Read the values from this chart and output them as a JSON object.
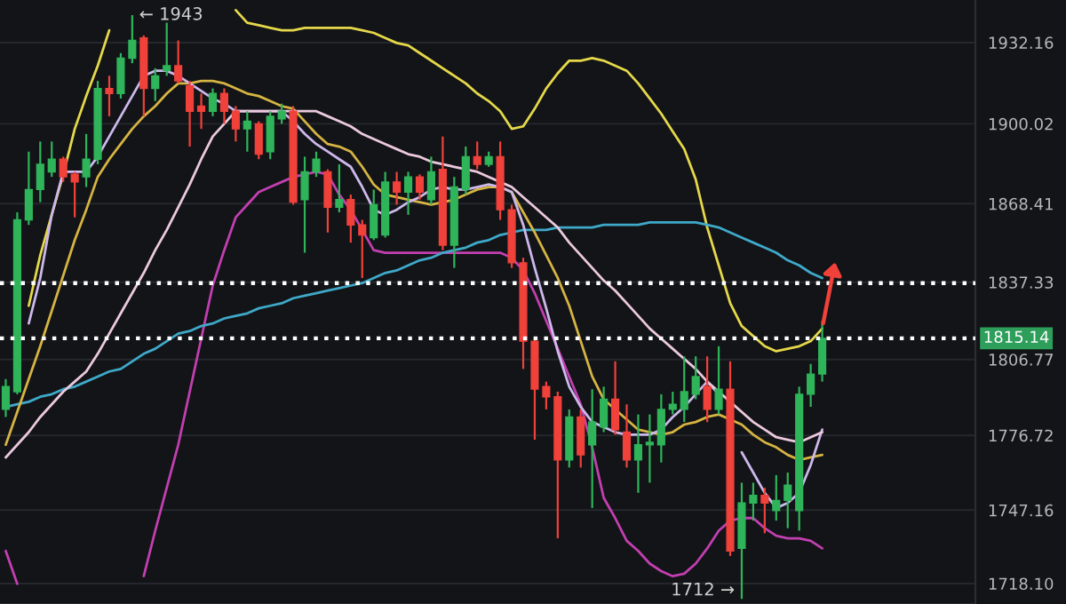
{
  "chart_data": {
    "type": "candlestick",
    "categories": [
      null,
      null,
      null,
      null,
      null,
      null,
      null,
      null,
      null,
      null,
      null,
      null,
      null,
      null,
      null,
      null,
      null,
      null,
      null,
      null,
      null,
      null,
      null,
      null,
      null,
      null,
      null,
      null,
      null,
      null,
      null,
      null,
      null,
      null,
      null,
      null,
      null,
      null,
      null,
      null,
      null,
      null,
      null,
      null,
      null,
      null,
      null,
      null,
      null,
      null,
      null,
      null,
      null,
      null,
      null,
      null,
      null,
      null,
      null,
      null,
      null,
      null,
      null,
      null,
      null,
      null,
      null,
      null,
      null,
      null,
      null,
      null
    ],
    "ohlc": [
      [
        1787,
        1799,
        1784,
        1796
      ],
      [
        1794,
        1865,
        1793,
        1862
      ],
      [
        1862,
        1889,
        1860,
        1874
      ],
      [
        1874,
        1893,
        1869,
        1884
      ],
      [
        1881,
        1893,
        1879,
        1886
      ],
      [
        1886,
        1887,
        1877,
        1879
      ],
      [
        1880,
        1881,
        1863,
        1877
      ],
      [
        1879,
        1896,
        1875,
        1886
      ],
      [
        1886,
        1917,
        1884,
        1914
      ],
      [
        1914,
        1919,
        1903,
        1912
      ],
      [
        1912,
        1928,
        1910,
        1926
      ],
      [
        1926,
        1943,
        1924,
        1933
      ],
      [
        1934,
        1935,
        1903,
        1914
      ],
      [
        1914,
        1922,
        1909,
        1919
      ],
      [
        1921,
        1940,
        1919,
        1923
      ],
      [
        1923,
        1933,
        1916,
        1917
      ],
      [
        1915,
        1917,
        1891,
        1905
      ],
      [
        1907,
        1912,
        1898,
        1905
      ],
      [
        1905,
        1914,
        1903,
        1912
      ],
      [
        1912,
        1914,
        1900,
        1905
      ],
      [
        1905,
        1907,
        1893,
        1898
      ],
      [
        1898,
        1905,
        1889,
        1901
      ],
      [
        1900,
        1901,
        1886,
        1888
      ],
      [
        1889,
        1905,
        1886,
        1903
      ],
      [
        1902,
        1908,
        1900,
        1905
      ],
      [
        1905,
        1907,
        1868,
        1869
      ],
      [
        1870,
        1887,
        1849,
        1881
      ],
      [
        1881,
        1889,
        1879,
        1886
      ],
      [
        1881,
        1882,
        1857,
        1867
      ],
      [
        1867,
        1884,
        1865,
        1870
      ],
      [
        1870,
        1872,
        1853,
        1860
      ],
      [
        1860,
        1862,
        1839,
        1856
      ],
      [
        1855,
        1874,
        1854,
        1868
      ],
      [
        1856,
        1881,
        1855,
        1877
      ],
      [
        1877,
        1881,
        1868,
        1873
      ],
      [
        1873,
        1881,
        1864,
        1879
      ],
      [
        1879,
        1880,
        1870,
        1873
      ],
      [
        1870,
        1887,
        1868,
        1881
      ],
      [
        1882,
        1895,
        1850,
        1852
      ],
      [
        1852,
        1879,
        1843,
        1875
      ],
      [
        1874,
        1891,
        1872,
        1887
      ],
      [
        1887,
        1893,
        1882,
        1884
      ],
      [
        1884,
        1889,
        1883,
        1887
      ],
      [
        1887,
        1893,
        1862,
        1866
      ],
      [
        1866,
        1868,
        1843,
        1845
      ],
      [
        1845,
        1847,
        1803,
        1814
      ],
      [
        1814,
        1815,
        1775,
        1795
      ],
      [
        1796,
        1798,
        1787,
        1792
      ],
      [
        1792,
        1794,
        1736,
        1767
      ],
      [
        1767,
        1787,
        1764,
        1784
      ],
      [
        1784,
        1787,
        1764,
        1769
      ],
      [
        1773,
        1795,
        1748,
        1782
      ],
      [
        1780,
        1796,
        1778,
        1791
      ],
      [
        1791,
        1806,
        1777,
        1779
      ],
      [
        1778,
        1789,
        1764,
        1767
      ],
      [
        1767,
        1785,
        1754,
        1773
      ],
      [
        1773,
        1785,
        1758,
        1774
      ],
      [
        1773,
        1793,
        1766,
        1787
      ],
      [
        1787,
        1794,
        1785,
        1789
      ],
      [
        1787,
        1808,
        1782,
        1794
      ],
      [
        1793,
        1808,
        1791,
        1800
      ],
      [
        1796,
        1808,
        1782,
        1787
      ],
      [
        1787,
        1812,
        1785,
        1795
      ],
      [
        1795,
        1806,
        1729,
        1731
      ],
      [
        1732,
        1758,
        1712,
        1750
      ],
      [
        1750,
        1758,
        1743,
        1753
      ],
      [
        1753,
        1756,
        1738,
        1750
      ],
      [
        1747,
        1761,
        1743,
        1751
      ],
      [
        1751,
        1762,
        1740,
        1757
      ],
      [
        1747,
        1796,
        1739,
        1793
      ],
      [
        1793,
        1805,
        1788,
        1801
      ],
      [
        1801,
        1822,
        1798,
        1815.14
      ]
    ],
    "colors": [
      "#2fb45a",
      "#2fb45a",
      "#2fb45a",
      "#2fb45a",
      "#2fb45a",
      "#f0413a",
      "#f0413a",
      "#2fb45a",
      "#2fb45a",
      "#f0413a",
      "#2fb45a",
      "#2fb45a",
      "#f0413a",
      "#2fb45a",
      "#2fb45a",
      "#f0413a",
      "#f0413a",
      "#f0413a",
      "#2fb45a",
      "#f0413a",
      "#f0413a",
      "#2fb45a",
      "#f0413a",
      "#2fb45a",
      "#2fb45a",
      "#f0413a",
      "#2fb45a",
      "#2fb45a",
      "#f0413a",
      "#2fb45a",
      "#f0413a",
      "#f0413a",
      "#2fb45a",
      "#2fb45a",
      "#f0413a",
      "#2fb45a",
      "#f0413a",
      "#2fb45a",
      "#f0413a",
      "#2fb45a",
      "#2fb45a",
      "#f0413a",
      "#2fb45a",
      "#f0413a",
      "#f0413a",
      "#f0413a",
      "#f0413a",
      "#f0413a",
      "#f0413a",
      "#2fb45a",
      "#f0413a",
      "#2fb45a",
      "#2fb45a",
      "#f0413a",
      "#f0413a",
      "#2fb45a",
      "#2fb45a",
      "#2fb45a",
      "#2fb45a",
      "#2fb45a",
      "#2fb45a",
      "#f0413a",
      "#2fb45a",
      "#f0413a",
      "#2fb45a",
      "#2fb45a",
      "#f0413a",
      "#2fb45a",
      "#2fb45a",
      "#2fb45a",
      "#2fb45a",
      "#2fb45a"
    ],
    "series": [
      {
        "type": "line",
        "color": "#e6d84a",
        "values": [
          null,
          null,
          1828,
          1848,
          1864,
          1880,
          1898,
          1911,
          1923,
          1937,
          null,
          null,
          null,
          null,
          null,
          null,
          null,
          null,
          null,
          null,
          1945,
          1940,
          1939,
          1938,
          1937,
          1937,
          1938,
          1938,
          1938,
          1938,
          1938,
          1937,
          1936,
          1934,
          1932,
          1931,
          1928,
          1925,
          1922,
          1919,
          1916,
          1912,
          1909,
          1905,
          1898,
          1899,
          1906,
          1914,
          1920,
          1925,
          1925,
          1926,
          1925,
          1923,
          1921,
          1916,
          1910,
          1904,
          1897,
          1890,
          1878,
          1859,
          1844,
          1829,
          1820,
          1816,
          1812,
          1810,
          1811,
          1812,
          1814,
          1819
        ]
      },
      {
        "type": "line",
        "color": "#c23fb0",
        "values": [
          1731,
          1718,
          null,
          null,
          null,
          null,
          null,
          null,
          null,
          null,
          null,
          null,
          1721,
          1739,
          1756,
          1773,
          1794,
          1815,
          1836,
          1850,
          1863,
          1868,
          1873,
          1875,
          1877,
          1879,
          1880,
          1881,
          1880,
          1872,
          1866,
          1858,
          1850,
          1849,
          1849,
          1849,
          1849,
          1849,
          1849,
          1849,
          1849,
          1849,
          1849,
          1849,
          1847,
          1842,
          1833,
          1822,
          1811,
          1800,
          1789,
          1772,
          1752,
          1744,
          1735,
          1731,
          1726,
          1723,
          1721,
          1722,
          1726,
          1732,
          1739,
          1743,
          1744,
          1744,
          1740,
          1737,
          1736,
          1736,
          1735,
          1732
        ]
      },
      {
        "type": "line",
        "color": "#3fa9c9",
        "values": [
          1788,
          1789,
          1790,
          1792,
          1793,
          1795,
          1796,
          1798,
          1800,
          1802,
          1803,
          1806,
          1809,
          1811,
          1814,
          1817,
          1818,
          1820,
          1821,
          1823,
          1824,
          1825,
          1827,
          1828,
          1829,
          1831,
          1832,
          1833,
          1834,
          1835,
          1836,
          1837,
          1839,
          1841,
          1842,
          1844,
          1846,
          1847,
          1849,
          1850,
          1851,
          1853,
          1854,
          1856,
          1857,
          1858,
          1858,
          1858,
          1859,
          1859,
          1859,
          1859,
          1860,
          1860,
          1860,
          1860,
          1861,
          1861,
          1861,
          1861,
          1861,
          1860,
          1859,
          1857,
          1855,
          1853,
          1851,
          1849,
          1846,
          1844,
          1841,
          1839
        ]
      },
      {
        "type": "line",
        "color": "#d6b443",
        "values": [
          1773,
          1786,
          1799,
          1812,
          1826,
          1840,
          1854,
          1866,
          1879,
          1886,
          1892,
          1898,
          1903,
          1907,
          1912,
          1916,
          1916,
          1917,
          1917,
          1916,
          1914,
          1912,
          1911,
          1909,
          1907,
          1906,
          1901,
          1896,
          1892,
          1891,
          1889,
          1883,
          1876,
          1872,
          1871,
          1870,
          1869,
          1868,
          1869,
          1870,
          1872,
          1874,
          1875,
          1875,
          1873,
          1865,
          1857,
          1848,
          1839,
          1828,
          1814,
          1800,
          1791,
          1787,
          1783,
          1779,
          1778,
          1777,
          1778,
          1781,
          1782,
          1784,
          1785,
          1783,
          1781,
          1777,
          1774,
          1772,
          1769,
          1767,
          1768,
          1769
        ]
      },
      {
        "type": "line",
        "color": "#cdb8ec",
        "values": [
          null,
          null,
          1821,
          1839,
          1864,
          1881,
          1881,
          1881,
          1887,
          1895,
          1903,
          1911,
          1919,
          1921,
          1921,
          1919,
          1916,
          1913,
          1910,
          1908,
          1905,
          1905,
          1905,
          1905,
          1905,
          1901,
          1896,
          1892,
          1889,
          1886,
          1883,
          1875,
          1866,
          1864,
          1866,
          1869,
          1871,
          1874,
          1875,
          1874,
          1874,
          1875,
          1876,
          1875,
          1873,
          1860,
          1843,
          1827,
          1810,
          1796,
          1788,
          1782,
          1780,
          1778,
          1777,
          1777,
          1777,
          1779,
          1784,
          1788,
          1793,
          1798,
          1793,
          null,
          1770,
          1762,
          1754,
          1748,
          1750,
          1754,
          1765,
          1779
        ]
      },
      {
        "type": "line",
        "color": "#ecc9df",
        "values": [
          1768,
          1773,
          1778,
          1784,
          1789,
          1794,
          1798,
          1802,
          1809,
          1817,
          1825,
          1833,
          1841,
          1850,
          1858,
          1867,
          1876,
          1886,
          1895,
          1900,
          1905,
          1905,
          1905,
          1905,
          1905,
          1905,
          1905,
          1905,
          1903,
          1901,
          1899,
          1896,
          1894,
          1892,
          1890,
          1888,
          1887,
          1885,
          1884,
          1883,
          1882,
          1881,
          1879,
          1877,
          1875,
          1871,
          1867,
          1863,
          1859,
          1853,
          1848,
          1843,
          1838,
          1834,
          1829,
          1824,
          1819,
          1815,
          1811,
          1807,
          1803,
          1798,
          1794,
          1790,
          1786,
          1782,
          1779,
          1776,
          1775,
          1774,
          1776,
          1778
        ]
      }
    ],
    "ylim": [
      1710,
      1949
    ],
    "yticks": [
      {
        "value": 1718.1,
        "label": "1718.10"
      },
      1747.16,
      1776.72,
      1806.77,
      1837.33,
      1868.41,
      1900.02,
      1932.16
    ],
    "tick_labels": "y",
    "grid": "y",
    "ref_lines": [
      {
        "axis": "y",
        "value": 1837,
        "color": "#ffffff",
        "line_style": "dotted"
      },
      {
        "axis": "y",
        "value": 1815.14,
        "label": "1815.14",
        "color": "#ffffff",
        "line_style": "dotted"
      }
    ],
    "annotations": [
      {
        "text": "← 1943",
        "y": 1943
      },
      "1712 →"
    ]
  }
}
